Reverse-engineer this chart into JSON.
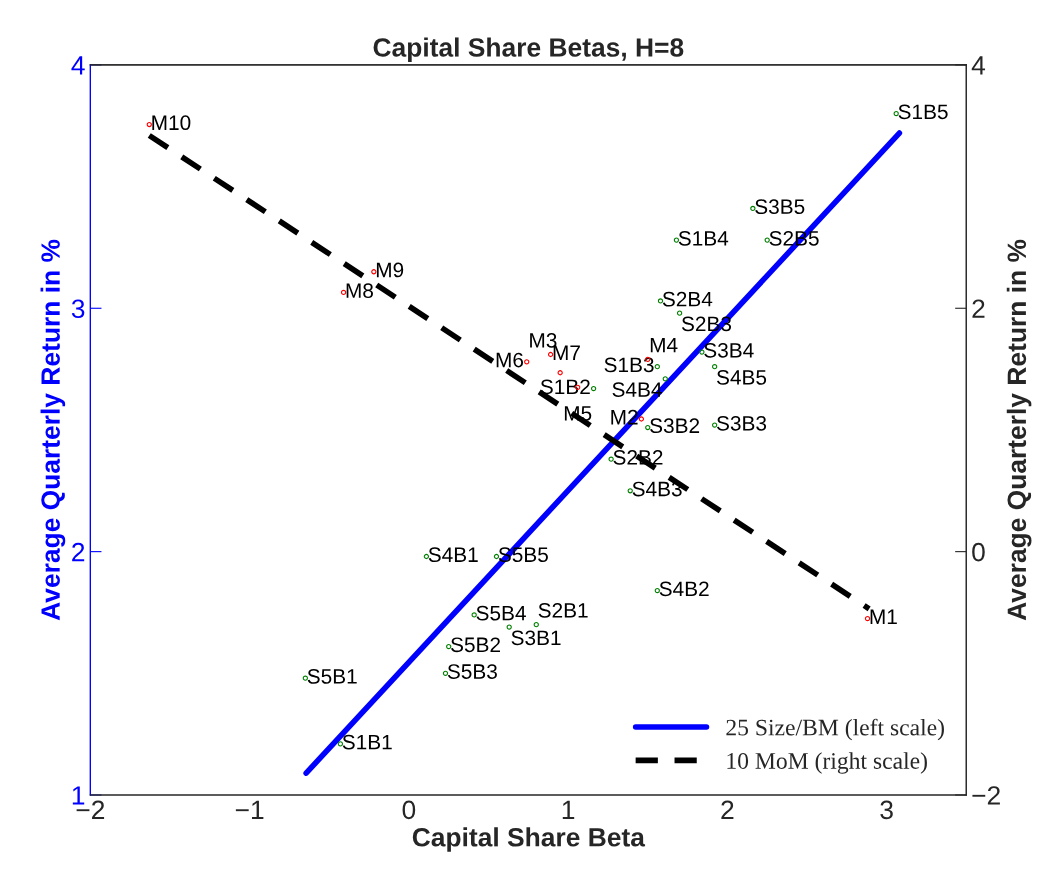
{
  "chart_data": {
    "type": "scatter",
    "title": "Capital Share Betas, H=8",
    "xlabel": "Capital Share Beta",
    "ylabel": "Average Quarterly Return in %",
    "y2label": "Average Quarterly Return in %",
    "xlim": [
      -2,
      3.5
    ],
    "xticks": [
      {
        "value": -2,
        "label": "−2"
      },
      {
        "value": -1,
        "label": "−1"
      },
      0,
      1,
      2,
      3
    ],
    "ylim": [
      1,
      4
    ],
    "yticks": [
      1,
      2,
      3,
      4
    ],
    "y2lim": [
      -2,
      4
    ],
    "y2ticks": [
      {
        "value": -2,
        "label": "−2"
      },
      0,
      2,
      4
    ],
    "grid": false,
    "legend": "bottom right",
    "series": [
      {
        "color": "#008000",
        "marker": "circle",
        "x": [
          3.06,
          2.16,
          2.25,
          1.68,
          1.58,
          1.7,
          1.84,
          1.56,
          1.92,
          1.61,
          1.16,
          1.5,
          1.92,
          1.27,
          1.39,
          1.56,
          0.11,
          0.55,
          0.41,
          0.63,
          0.8,
          0.25,
          0.23,
          -0.65,
          -0.43
        ],
        "values": [
          3.8,
          3.41,
          3.28,
          3.28,
          3.03,
          2.98,
          2.82,
          2.76,
          2.76,
          2.71,
          2.67,
          2.51,
          2.52,
          2.38,
          2.25,
          1.84,
          1.98,
          1.98,
          1.74,
          1.69,
          1.7,
          1.61,
          1.5,
          1.48,
          1.21
        ],
        "value_labels": [
          "S1B5",
          "S3B5",
          "S2B5",
          "S1B4",
          "S2B4",
          "S2B3",
          "S3B4",
          "S1B3",
          "S4B5",
          "S4B4",
          "S1B2",
          "S3B2",
          "S3B3",
          "S2B2",
          "S4B3",
          "S4B2",
          "S4B1",
          "S5B5",
          "S5B4",
          "S3B1",
          "S2B1",
          "S5B2",
          "S5B3",
          "S5B1",
          "S1B1"
        ]
      },
      {
        "type": "scatter",
        "color": "#ff0000",
        "marker": "circle",
        "axis": "y2",
        "x": [
          -1.63,
          -0.22,
          -0.41,
          0.89,
          0.74,
          0.95,
          1.06,
          1.46,
          1.5,
          2.88
        ],
        "values": [
          3.51,
          2.3,
          2.13,
          1.62,
          1.56,
          1.47,
          1.35,
          1.09,
          1.58,
          -0.55
        ],
        "value_labels": [
          "M10",
          "M9",
          "M8",
          "M7",
          "M6",
          "M3",
          "M5",
          "M2",
          "M4",
          "M1"
        ]
      },
      {
        "type": "line",
        "name": "25 Size/BM (left scale)",
        "color": "#0000ff",
        "line_style": "solid",
        "marker": "none",
        "x": [
          -0.645,
          3.08
        ],
        "values": [
          1.09,
          3.72
        ]
      },
      {
        "type": "line",
        "name": "10 MoM (right scale)",
        "color": "#000000",
        "line_style": "dashed",
        "marker": "none",
        "axis": "y2",
        "x": [
          -1.63,
          2.89
        ],
        "values": [
          3.42,
          -0.47
        ]
      }
    ]
  }
}
